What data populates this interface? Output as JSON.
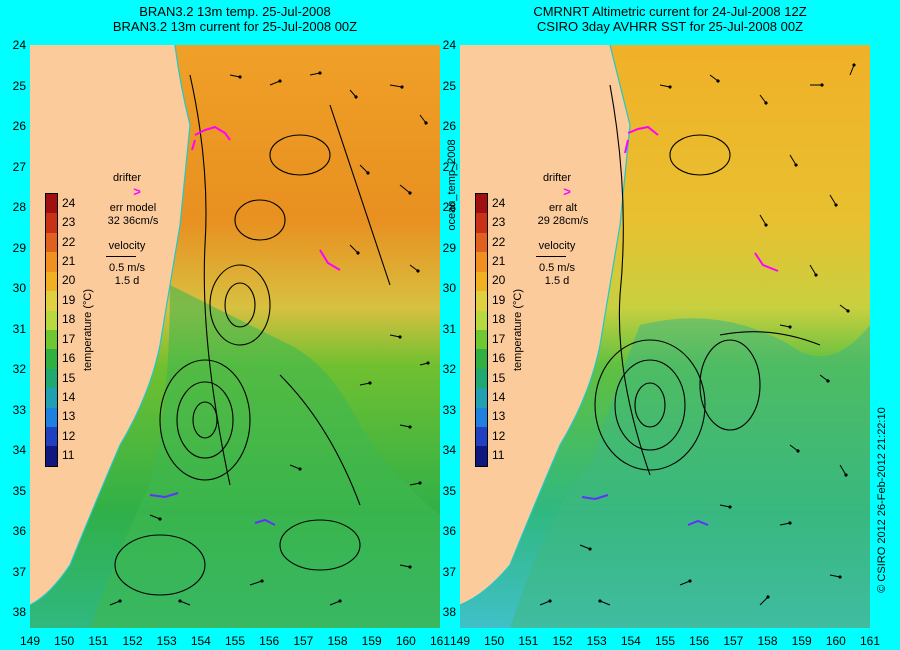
{
  "left_panel": {
    "title_line1": "BRAN3.2 13m temp. 25-Jul-2008",
    "title_line2": "BRAN3.2 13m current for 25-Jul-2008 00Z",
    "legend": {
      "drifter_label": "drifter",
      "drifter_symbol": ">",
      "err_label": "err model",
      "err_value": "32 36cm/s",
      "velocity_label": "velocity",
      "velocity_value": "0.5 m/s",
      "velocity_days": "1.5 d"
    }
  },
  "right_panel": {
    "title_line1": "CMRNRT Altimetric current for 24-Jul-2008 12Z",
    "title_line2": "CSIRO 3day AVHRR SST for 25-Jul-2008 00Z",
    "legend": {
      "drifter_label": "drifter",
      "drifter_symbol": ">",
      "err_label": "err alt",
      "err_value": "29 28cm/s",
      "velocity_label": "velocity",
      "velocity_value": "0.5 m/s",
      "velocity_days": "1.5 d"
    }
  },
  "center_label": "ocean_temp_2008",
  "right_credit": "© CSIRO 2012   26-Feb-2012 21:22:10",
  "colorbar": {
    "label": "temperature (°C)",
    "ticks": [
      "24",
      "23",
      "22",
      "21",
      "20",
      "19",
      "18",
      "17",
      "16",
      "15",
      "14",
      "13",
      "12",
      "11"
    ],
    "colors": [
      "#a01010",
      "#c83018",
      "#e06020",
      "#f09020",
      "#f0b020",
      "#e0d040",
      "#b8d840",
      "#70c830",
      "#30b040",
      "#20a870",
      "#20a0b0",
      "#2080e0",
      "#2040c0",
      "#101880"
    ]
  },
  "y_ticks": [
    "24",
    "25",
    "26",
    "27",
    "28",
    "29",
    "30",
    "31",
    "32",
    "33",
    "34",
    "35",
    "36",
    "37",
    "38"
  ],
  "x_ticks": [
    "149",
    "150",
    "151",
    "152",
    "153",
    "154",
    "155",
    "156",
    "157",
    "158",
    "159",
    "160",
    "161"
  ],
  "colors": {
    "background": "#00ffff",
    "land": "#fccb9c",
    "drifter_track": "#ff00ff",
    "coast_line": "#20c8c8"
  }
}
